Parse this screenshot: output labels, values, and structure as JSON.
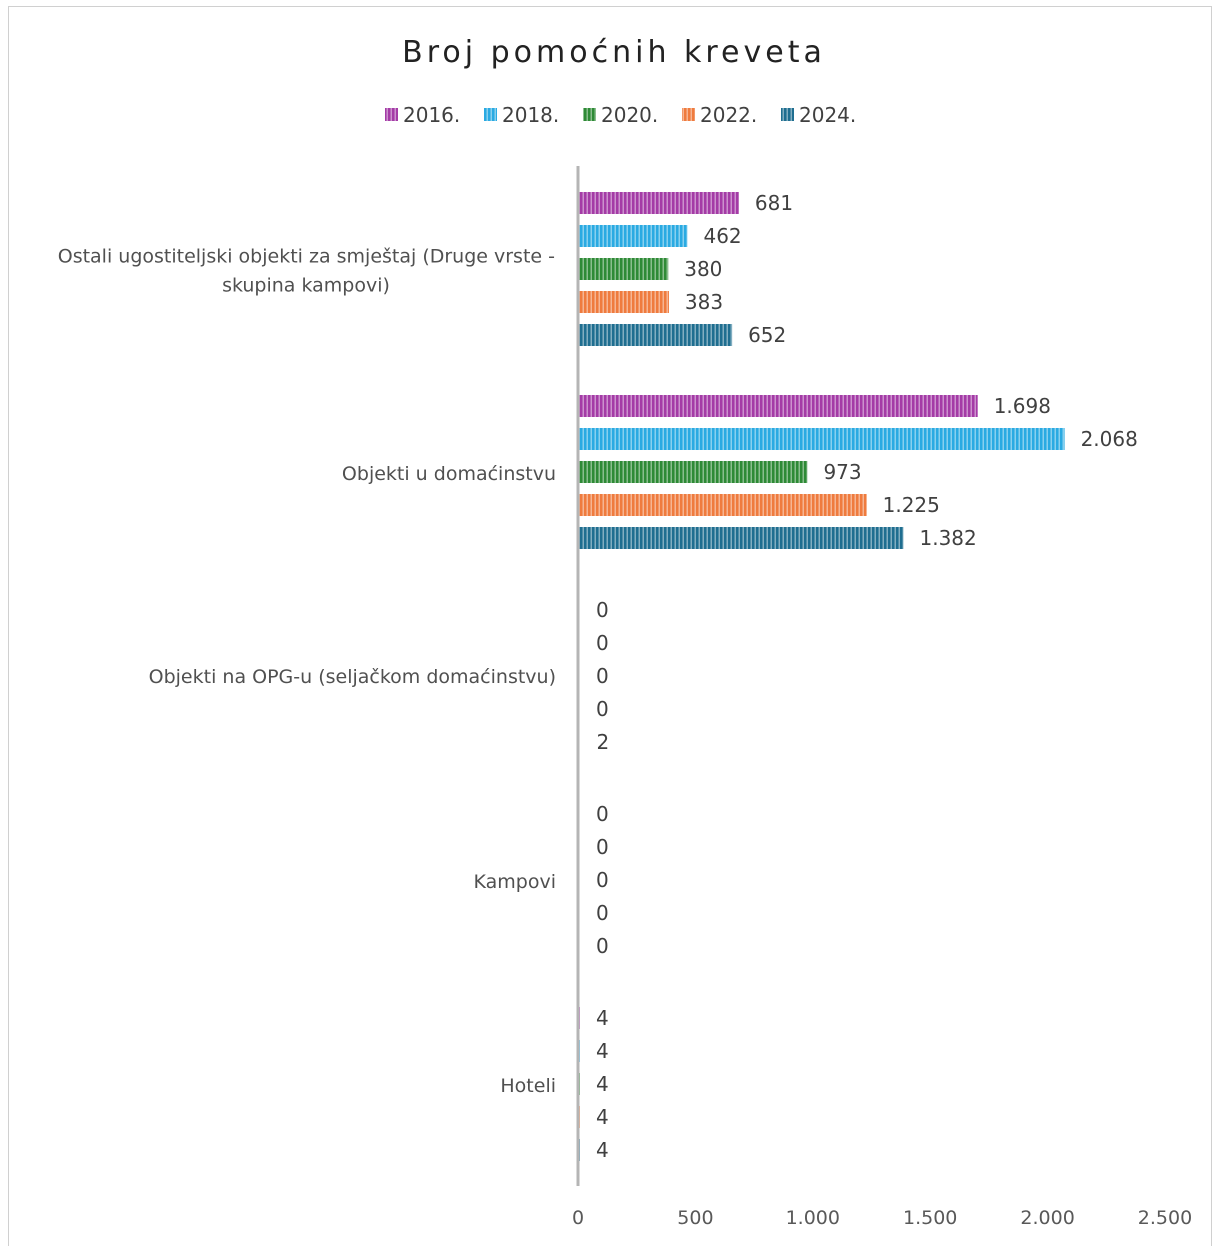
{
  "chart_data": {
    "type": "bar",
    "orientation": "horizontal",
    "title": "Broj pomoćnih kreveta",
    "xlabel": "",
    "ylabel": "",
    "xlim": [
      0,
      2500
    ],
    "x_ticks": [
      "0",
      "500",
      "1.000",
      "1.500",
      "2.000",
      "2.500"
    ],
    "grid": false,
    "legend_position": "top",
    "categories": [
      "Ostali ugostiteljski objekti za smještaj (Druge vrste - skupina kampovi)",
      "Objekti u domaćinstvu",
      "Objekti na OPG-u (seljačkom domaćinstvu)",
      "Kampovi",
      "Hoteli"
    ],
    "category_label_lines": [
      [
        "Ostali ugostiteljski objekti za smještaj (Druge vrste -",
        "skupina kampovi)"
      ],
      [
        "Objekti u domaćinstvu"
      ],
      [
        "Objekti na OPG-u (seljačkom domaćinstvu)"
      ],
      [
        "Kampovi"
      ],
      [
        "Hoteli"
      ]
    ],
    "series": [
      {
        "name": "2016.",
        "color": "#a43ba6",
        "values": [
          681,
          1698,
          0,
          0,
          4
        ],
        "labels": [
          "681",
          "1.698",
          "0",
          "0",
          "4"
        ]
      },
      {
        "name": "2018.",
        "color": "#2aaae2",
        "values": [
          462,
          2068,
          0,
          0,
          4
        ],
        "labels": [
          "462",
          "2.068",
          "0",
          "0",
          "4"
        ]
      },
      {
        "name": "2020.",
        "color": "#2e8a36",
        "values": [
          380,
          973,
          0,
          0,
          4
        ],
        "labels": [
          "380",
          "973",
          "0",
          "0",
          "4"
        ]
      },
      {
        "name": "2022.",
        "color": "#ef7b3e",
        "values": [
          383,
          1225,
          0,
          0,
          4
        ],
        "labels": [
          "383",
          "1.225",
          "0",
          "0",
          "4"
        ]
      },
      {
        "name": "2024.",
        "color": "#1f6e90",
        "values": [
          652,
          1382,
          2,
          0,
          4
        ],
        "labels": [
          "652",
          "1.382",
          "2",
          "0",
          "4"
        ]
      }
    ]
  }
}
